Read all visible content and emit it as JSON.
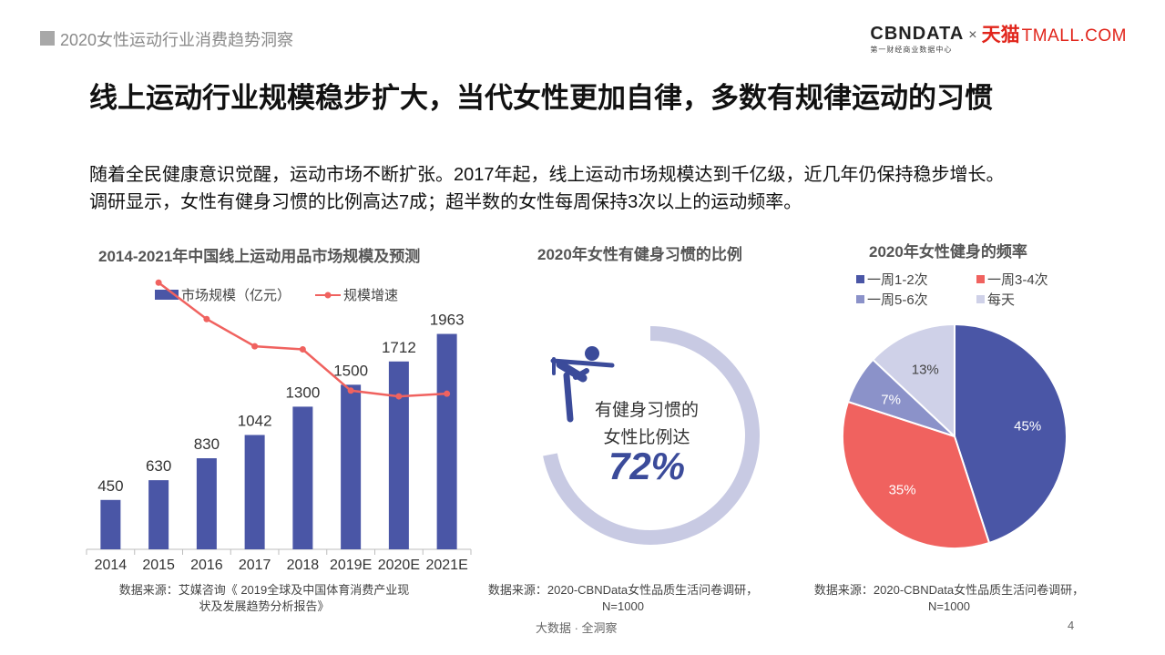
{
  "header": {
    "title": "2020女性运动行业消费趋势洞察"
  },
  "brand": {
    "cbn": "CBNDATA",
    "cbn_sub": "第一财经商业数据中心",
    "times": "×",
    "tmall_cn": "天猫",
    "tmall_en": "TMALL.COM"
  },
  "main_title": "线上运动行业规模稳步扩大，当代女性更加自律，多数有规律运动的习惯",
  "intro": {
    "line1": "随着全民健康意识觉醒，运动市场不断扩张。2017年起，线上运动市场规模达到千亿级，近几年仍保持稳步增长。",
    "line2": "调研显示，女性有健身习惯的比例高达7成；超半数的女性每周保持3次以上的运动频率。"
  },
  "colors": {
    "navy": "#4a56a6",
    "red": "#f0625f",
    "light_purple": "#8b92c9",
    "lavender": "#cfd1e8",
    "ring": "#c8cae3"
  },
  "chart_data": [
    {
      "type": "bar",
      "title": "2014-2021年中国线上运动用品市场规模及预测",
      "categories": [
        "2014",
        "2015",
        "2016",
        "2017",
        "2018",
        "2019E",
        "2020E",
        "2021E"
      ],
      "series": [
        {
          "name": "市场规模（亿元）",
          "type": "bar",
          "color": "#4a56a6",
          "values": [
            450,
            630,
            830,
            1042,
            1300,
            1500,
            1712,
            1963
          ]
        },
        {
          "name": "规模增速",
          "type": "line",
          "color": "#f0625f",
          "values": [
            null,
            0.4,
            0.317,
            0.255,
            0.248,
            0.154,
            0.141,
            0.147
          ]
        }
      ],
      "ylim": [
        0,
        2200
      ],
      "source": [
        "数据来源：艾媒咨询《 2019全球及中国体育消费产业现",
        "状及发展趋势分析报告》"
      ]
    },
    {
      "type": "pie",
      "title": "2020年女性有健身习惯的比例",
      "labels": [
        "有健身习惯的女性比例"
      ],
      "values": [
        72
      ],
      "center_text": [
        "有健身习惯的",
        "女性比例达"
      ],
      "center_value": "72%",
      "source": [
        "数据来源：2020-CBNData女性品质生活问卷调研，",
        "N=1000"
      ]
    },
    {
      "type": "pie",
      "title": "2020年女性健身的频率",
      "labels": [
        "一周1-2次",
        "一周3-4次",
        "一周5-6次",
        "每天"
      ],
      "values": [
        45,
        35,
        7,
        13
      ],
      "value_labels": [
        "45%",
        "35%",
        "7%",
        "13%"
      ],
      "colors": [
        "#4a56a6",
        "#f0625f",
        "#8b92c9",
        "#cfd1e8"
      ],
      "legend_position": "top",
      "source": [
        "数据来源：2020-CBNData女性品质生活问卷调研，",
        "N=1000"
      ]
    }
  ],
  "footer": {
    "text": "大数据 · 全洞察",
    "page": "4"
  }
}
